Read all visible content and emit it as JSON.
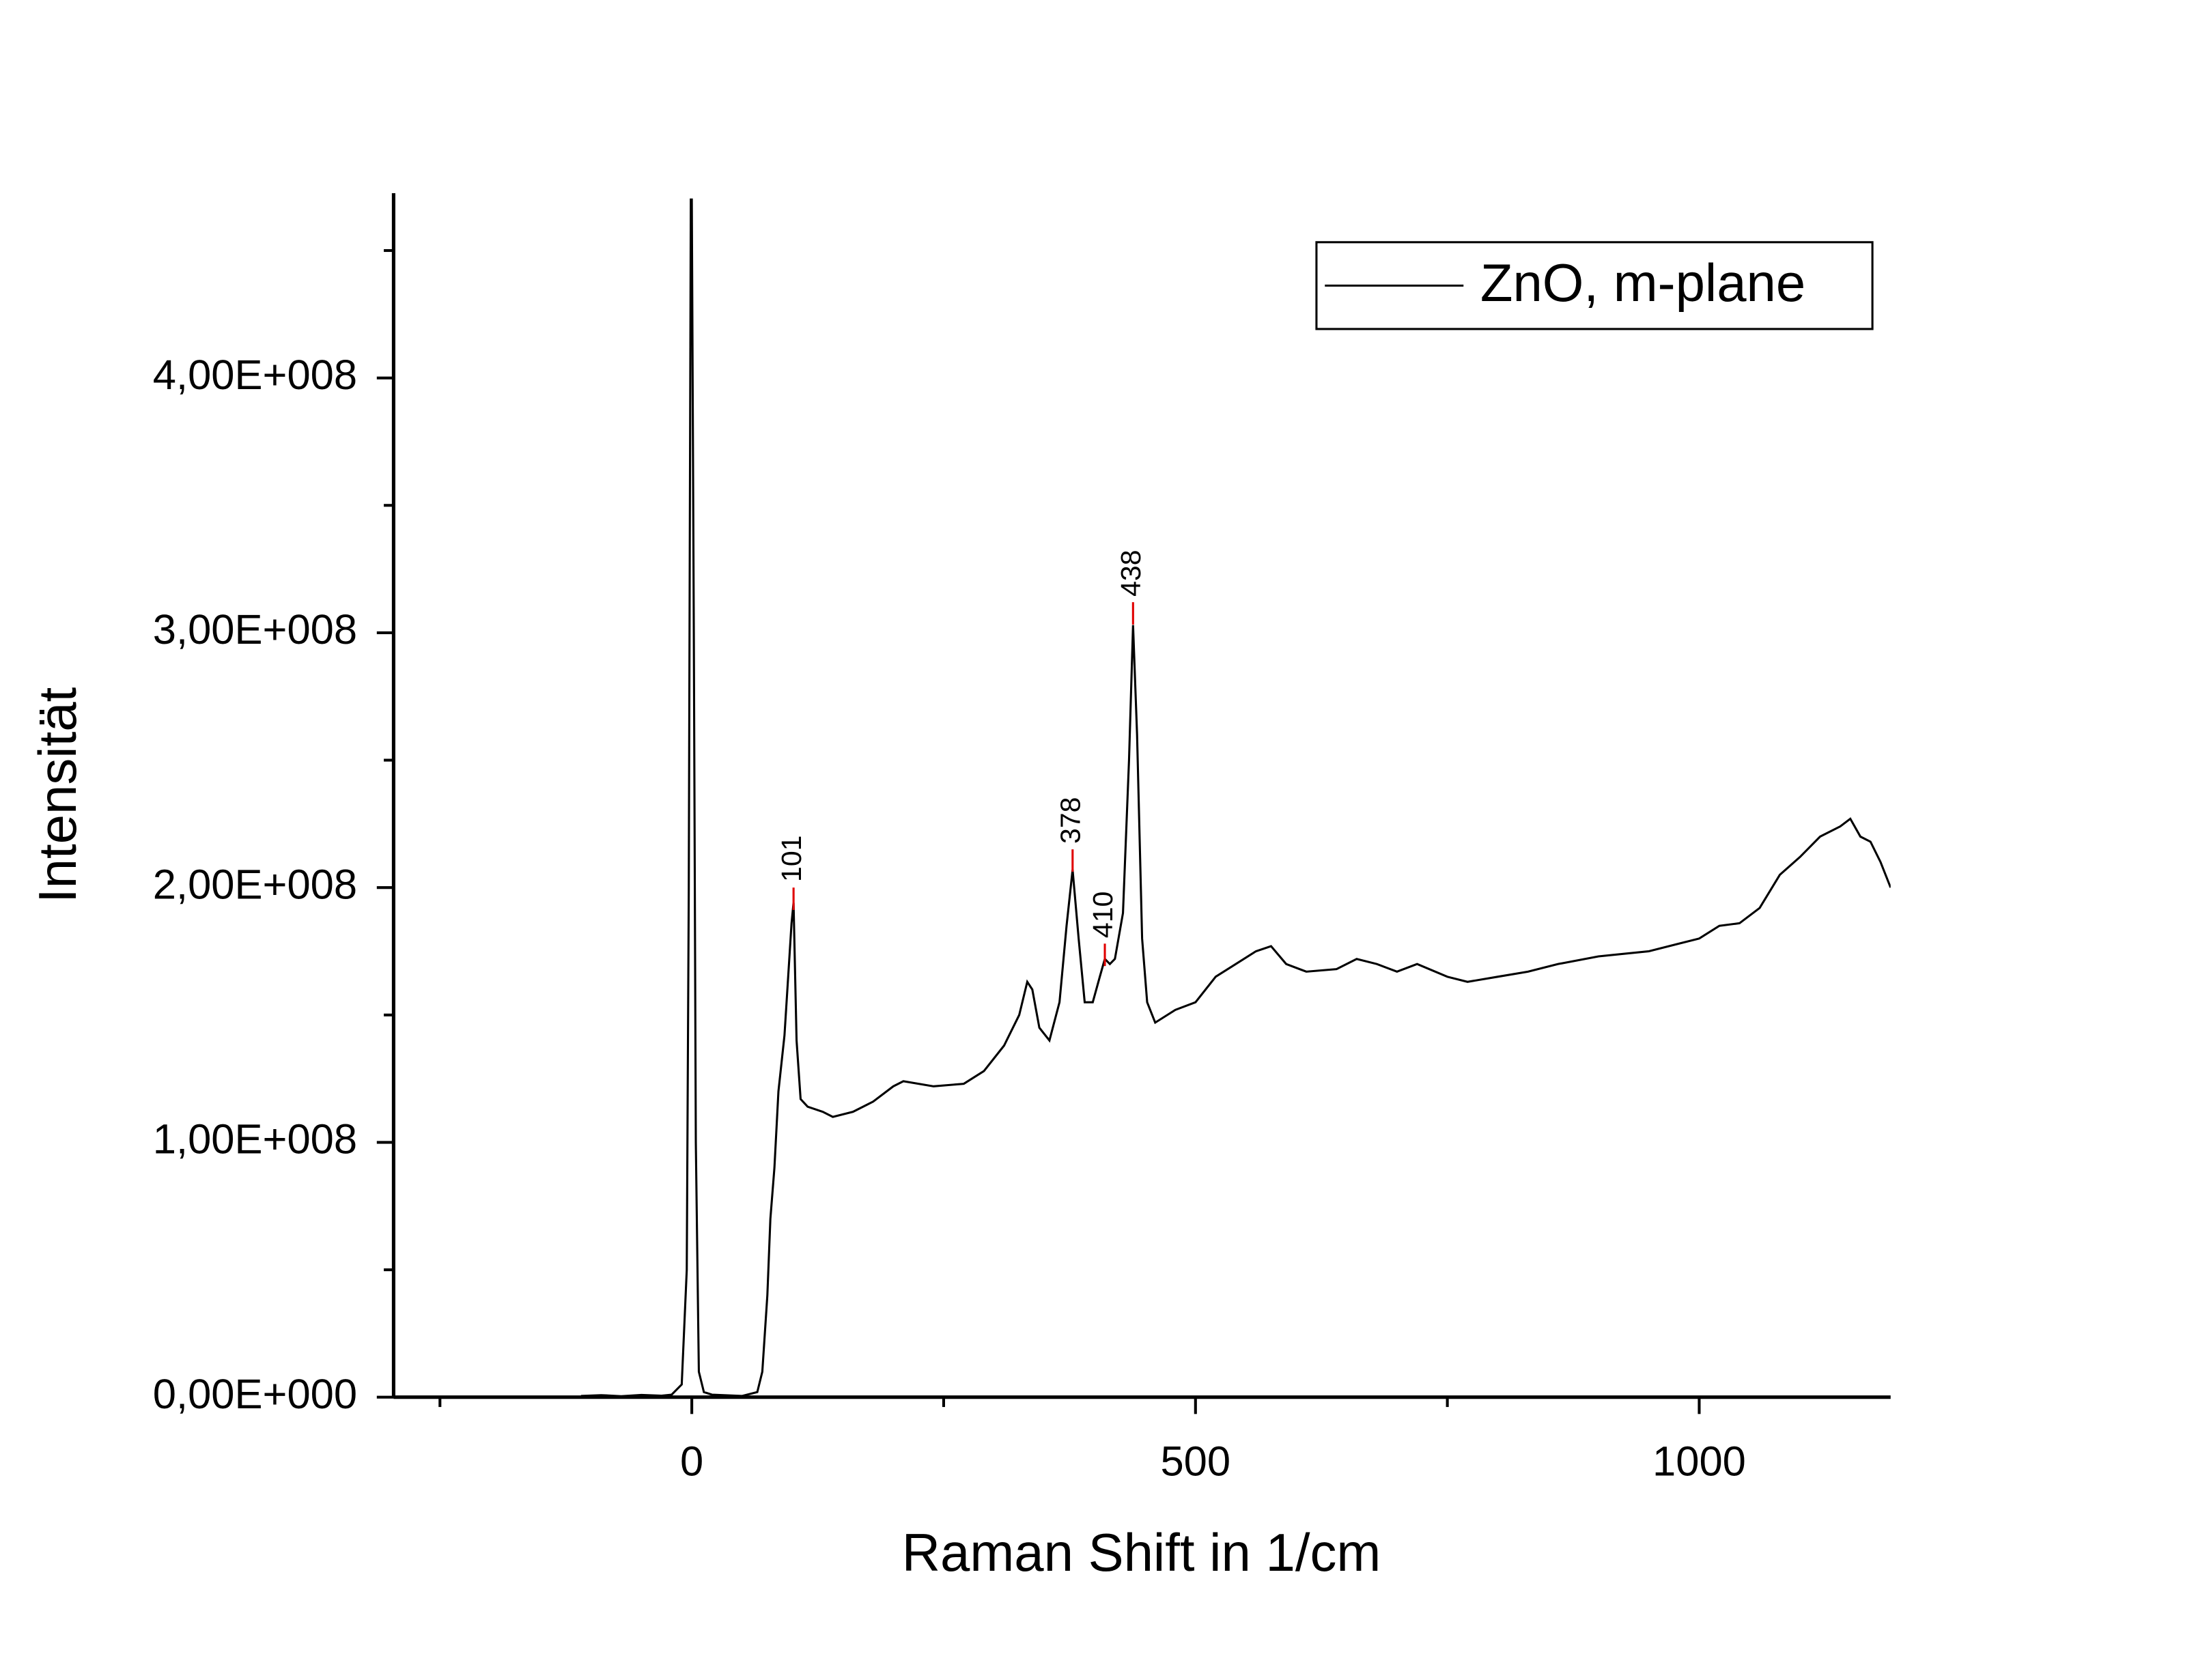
{
  "chart_data": {
    "type": "line",
    "x_label": "Raman Shift in 1/cm",
    "y_label": "Intensität",
    "xlim": [
      -296,
      1190
    ],
    "ylim": [
      0,
      472500000
    ],
    "xticks": [
      0,
      500,
      1000
    ],
    "x_minor_ticks": [
      -250,
      250,
      750
    ],
    "yticks": [
      {
        "value": 0,
        "label": "0,00E+000"
      },
      {
        "value": 100000000,
        "label": "1,00E+008"
      },
      {
        "value": 200000000,
        "label": "2,00E+008"
      },
      {
        "value": 300000000,
        "label": "3,00E+008"
      },
      {
        "value": 400000000,
        "label": "4,00E+008"
      }
    ],
    "y_minor_ticks": [
      50000000,
      150000000,
      250000000,
      350000000,
      450000000
    ],
    "legend": "top-right",
    "series": [
      {
        "name": "ZnO, m-plane",
        "color": "#000000",
        "x": [
          -110,
          -90,
          -70,
          -50,
          -30,
          -20,
          -10,
          -5,
          -3,
          -1,
          0,
          2,
          4,
          7,
          12,
          20,
          50,
          65,
          70,
          75,
          78,
          82,
          86,
          92,
          99,
          101,
          104,
          108,
          115,
          130,
          140,
          160,
          180,
          200,
          210,
          240,
          270,
          290,
          310,
          325,
          333,
          338,
          345,
          355,
          365,
          372,
          378,
          384,
          390,
          398,
          405,
          410,
          415,
          420,
          428,
          434,
          438,
          442,
          447,
          452,
          460,
          480,
          500,
          520,
          540,
          560,
          575,
          590,
          610,
          640,
          660,
          680,
          700,
          720,
          750,
          770,
          800,
          830,
          860,
          900,
          950,
          980,
          1000,
          1020,
          1040,
          1060,
          1080,
          1100,
          1120,
          1140,
          1150,
          1160,
          1170,
          1180,
          1190
        ],
        "values": [
          500000,
          800000,
          400000,
          900000,
          600000,
          1000000,
          5000000,
          50000000,
          200000000,
          470000000,
          470000000,
          300000000,
          100000000,
          10000000,
          2000000,
          1000000,
          500000,
          2000000,
          10000000,
          40000000,
          70000000,
          90000000,
          120000000,
          142000000,
          186000000,
          194000000,
          140000000,
          117000000,
          114000000,
          112000000,
          110000000,
          112000000,
          116000000,
          122000000,
          124000000,
          122000000,
          123000000,
          128000000,
          138000000,
          150000000,
          163000000,
          160000000,
          145000000,
          140000000,
          155000000,
          185000000,
          207000000,
          180000000,
          155000000,
          155000000,
          165000000,
          172000000,
          170000000,
          172000000,
          190000000,
          250000000,
          303000000,
          260000000,
          180000000,
          155000000,
          147000000,
          152000000,
          155000000,
          165000000,
          170000000,
          175000000,
          177000000,
          170000000,
          167000000,
          168000000,
          172000000,
          170000000,
          167000000,
          170000000,
          165000000,
          163000000,
          165000000,
          167000000,
          170000000,
          173000000,
          175000000,
          178000000,
          180000000,
          185000000,
          186000000,
          192000000,
          205000000,
          212000000,
          220000000,
          224000000,
          227000000,
          220000000,
          218000000,
          210000000,
          200000000
        ]
      }
    ],
    "peaks": [
      {
        "x": 101,
        "y": 200000000
      },
      {
        "x": 378,
        "y": 215000000
      },
      {
        "x": 410,
        "y": 178000000
      },
      {
        "x": 438,
        "y": 312000000
      }
    ]
  }
}
